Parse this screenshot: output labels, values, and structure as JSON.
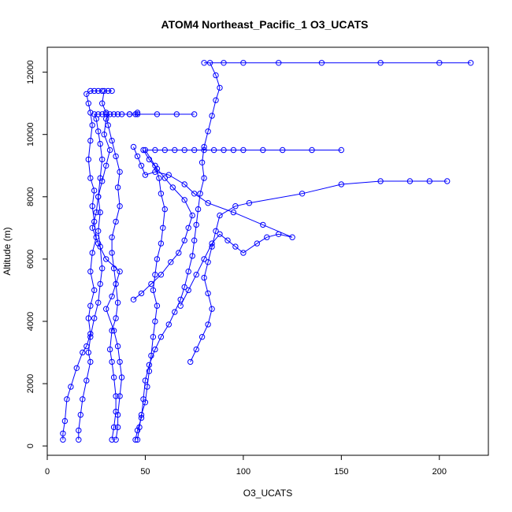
{
  "chart_data": {
    "type": "scatter",
    "title": "ATOM4 Northeast_Pacific_1 O3_UCATS",
    "xlabel": "O3_UCATS",
    "ylabel": "Altitude (m)",
    "xlim": [
      0,
      225
    ],
    "ylim": [
      -300,
      12800
    ],
    "x_ticks": [
      0,
      50,
      100,
      150,
      200
    ],
    "y_ticks": [
      0,
      2000,
      4000,
      6000,
      8000,
      10000,
      12000
    ],
    "grid": false,
    "legend": "none",
    "color": "#0000ff",
    "series": [
      {
        "points": [
          [
            8,
            200
          ],
          [
            8,
            400
          ],
          [
            9,
            800
          ],
          [
            10,
            1500
          ],
          [
            12,
            1900
          ],
          [
            15,
            2500
          ],
          [
            18,
            3000
          ],
          [
            20,
            3200
          ],
          [
            22,
            3600
          ],
          [
            21,
            4100
          ],
          [
            22,
            4500
          ],
          [
            24,
            5000
          ],
          [
            22,
            5600
          ],
          [
            23,
            6200
          ],
          [
            25,
            6700
          ],
          [
            24,
            7200
          ],
          [
            23,
            7700
          ],
          [
            24,
            8200
          ],
          [
            22,
            8600
          ],
          [
            21,
            9200
          ],
          [
            22,
            9800
          ],
          [
            23,
            10300
          ],
          [
            22,
            10700
          ],
          [
            21,
            11000
          ],
          [
            20,
            11300
          ],
          [
            22,
            11400
          ],
          [
            24,
            11400
          ],
          [
            26,
            11400
          ],
          [
            28,
            11400
          ]
        ]
      },
      {
        "points": [
          [
            16,
            200
          ],
          [
            16,
            500
          ],
          [
            17,
            1000
          ],
          [
            18,
            1500
          ],
          [
            20,
            2100
          ],
          [
            22,
            2700
          ],
          [
            21,
            3000
          ],
          [
            22,
            3500
          ],
          [
            24,
            4100
          ],
          [
            26,
            4600
          ],
          [
            27,
            5200
          ],
          [
            28,
            5700
          ],
          [
            27,
            6400
          ],
          [
            26,
            6900
          ],
          [
            27,
            7500
          ],
          [
            26,
            8000
          ],
          [
            27,
            8600
          ],
          [
            28,
            9200
          ],
          [
            27,
            9700
          ],
          [
            26,
            10100
          ],
          [
            25,
            10500
          ],
          [
            24,
            10650
          ],
          [
            26,
            10650
          ],
          [
            28,
            10650
          ],
          [
            30,
            10650
          ],
          [
            34,
            10650
          ],
          [
            38,
            10650
          ],
          [
            42,
            10650
          ],
          [
            46,
            10650
          ],
          [
            56,
            10650
          ],
          [
            66,
            10650
          ],
          [
            75,
            10650
          ]
        ]
      },
      {
        "points": [
          [
            33,
            200
          ],
          [
            34,
            600
          ],
          [
            35,
            1100
          ],
          [
            35,
            1600
          ],
          [
            34,
            2200
          ],
          [
            33,
            2700
          ],
          [
            32,
            3100
          ],
          [
            33,
            3700
          ],
          [
            35,
            4100
          ],
          [
            36,
            4600
          ],
          [
            35,
            5200
          ],
          [
            34,
            5700
          ],
          [
            33,
            6200
          ],
          [
            33,
            6700
          ],
          [
            35,
            7200
          ],
          [
            37,
            7700
          ],
          [
            36,
            8300
          ],
          [
            37,
            8800
          ],
          [
            35,
            9300
          ],
          [
            33,
            9800
          ],
          [
            31,
            10300
          ],
          [
            30,
            10700
          ],
          [
            28,
            11000
          ],
          [
            29,
            11400
          ],
          [
            31,
            11400
          ],
          [
            33,
            11400
          ]
        ]
      },
      {
        "points": [
          [
            35,
            200
          ],
          [
            36,
            600
          ],
          [
            36,
            1000
          ],
          [
            37,
            1600
          ],
          [
            38,
            2200
          ],
          [
            37,
            2700
          ],
          [
            36,
            3200
          ],
          [
            34,
            3700
          ],
          [
            30,
            4400
          ],
          [
            33,
            4800
          ],
          [
            37,
            5600
          ],
          [
            30,
            6000
          ],
          [
            26,
            6500
          ],
          [
            23,
            7000
          ],
          [
            25,
            7500
          ],
          [
            26,
            8000
          ],
          [
            28,
            8500
          ],
          [
            30,
            9000
          ],
          [
            32,
            9500
          ],
          [
            29,
            10000
          ],
          [
            30,
            10500
          ],
          [
            32,
            10650
          ],
          [
            36,
            10650
          ],
          [
            42,
            10650
          ],
          [
            45,
            10650
          ],
          [
            46,
            10700
          ]
        ]
      },
      {
        "points": [
          [
            46,
            200
          ],
          [
            47,
            600
          ],
          [
            48,
            1000
          ],
          [
            50,
            1400
          ],
          [
            51,
            1900
          ],
          [
            52,
            2400
          ],
          [
            53,
            2900
          ],
          [
            54,
            3500
          ],
          [
            55,
            4000
          ],
          [
            56,
            4500
          ],
          [
            54,
            5000
          ],
          [
            55,
            5500
          ],
          [
            56,
            6000
          ],
          [
            58,
            6500
          ],
          [
            59,
            7000
          ],
          [
            60,
            7600
          ],
          [
            58,
            8100
          ],
          [
            57,
            8600
          ],
          [
            55,
            9000
          ],
          [
            50,
            9500
          ],
          [
            55,
            9500
          ],
          [
            60,
            9500
          ],
          [
            65,
            9500
          ],
          [
            70,
            9500
          ],
          [
            75,
            9500
          ],
          [
            80,
            9500
          ],
          [
            85,
            9500
          ],
          [
            90,
            9500
          ],
          [
            95,
            9500
          ],
          [
            100,
            9500
          ],
          [
            110,
            9500
          ],
          [
            120,
            9500
          ],
          [
            135,
            9500
          ],
          [
            150,
            9500
          ]
        ]
      },
      {
        "points": [
          [
            45,
            200
          ],
          [
            46,
            500
          ],
          [
            48,
            900
          ],
          [
            49,
            1500
          ],
          [
            50,
            2100
          ],
          [
            52,
            2600
          ],
          [
            55,
            3100
          ],
          [
            58,
            3500
          ],
          [
            62,
            3900
          ],
          [
            65,
            4300
          ],
          [
            68,
            4700
          ],
          [
            70,
            5100
          ],
          [
            72,
            5600
          ],
          [
            74,
            6100
          ],
          [
            75,
            6600
          ],
          [
            76,
            7100
          ],
          [
            77,
            7600
          ],
          [
            78,
            8100
          ],
          [
            80,
            8600
          ],
          [
            79,
            9100
          ],
          [
            80,
            9600
          ],
          [
            82,
            10100
          ],
          [
            84,
            10600
          ],
          [
            86,
            11100
          ],
          [
            88,
            11500
          ],
          [
            86,
            11900
          ],
          [
            83,
            12300
          ],
          [
            80,
            12300
          ],
          [
            90,
            12300
          ],
          [
            100,
            12300
          ],
          [
            118,
            12300
          ],
          [
            140,
            12300
          ],
          [
            170,
            12300
          ],
          [
            200,
            12300
          ],
          [
            216,
            12300
          ]
        ]
      },
      {
        "points": [
          [
            73,
            2700
          ],
          [
            76,
            3100
          ],
          [
            79,
            3500
          ],
          [
            82,
            3900
          ],
          [
            84,
            4400
          ],
          [
            82,
            4900
          ],
          [
            80,
            5400
          ],
          [
            82,
            5900
          ],
          [
            84,
            6400
          ],
          [
            86,
            6900
          ],
          [
            88,
            7400
          ],
          [
            96,
            7700
          ],
          [
            103,
            7800
          ],
          [
            130,
            8100
          ],
          [
            150,
            8400
          ],
          [
            170,
            8500
          ],
          [
            185,
            8500
          ],
          [
            195,
            8500
          ],
          [
            204,
            8500
          ]
        ]
      },
      {
        "points": [
          [
            68,
            4500
          ],
          [
            72,
            5000
          ],
          [
            76,
            5500
          ],
          [
            80,
            6000
          ],
          [
            84,
            6500
          ],
          [
            88,
            6800
          ],
          [
            92,
            6600
          ],
          [
            96,
            6400
          ],
          [
            100,
            6200
          ],
          [
            107,
            6500
          ],
          [
            112,
            6700
          ],
          [
            118,
            6800
          ],
          [
            125,
            6700
          ],
          [
            110,
            7100
          ],
          [
            95,
            7500
          ],
          [
            82,
            7800
          ],
          [
            75,
            8100
          ],
          [
            70,
            8400
          ],
          [
            62,
            8700
          ],
          [
            55,
            8800
          ],
          [
            50,
            8700
          ],
          [
            48,
            9000
          ],
          [
            46,
            9300
          ],
          [
            44,
            9600
          ]
        ]
      },
      {
        "points": [
          [
            44,
            4700
          ],
          [
            48,
            4900
          ],
          [
            53,
            5200
          ],
          [
            58,
            5500
          ],
          [
            63,
            5900
          ],
          [
            67,
            6200
          ],
          [
            70,
            6600
          ],
          [
            72,
            7000
          ],
          [
            74,
            7400
          ],
          [
            70,
            7900
          ],
          [
            64,
            8300
          ],
          [
            60,
            8600
          ],
          [
            56,
            8900
          ],
          [
            52,
            9200
          ],
          [
            49,
            9500
          ]
        ]
      }
    ]
  }
}
